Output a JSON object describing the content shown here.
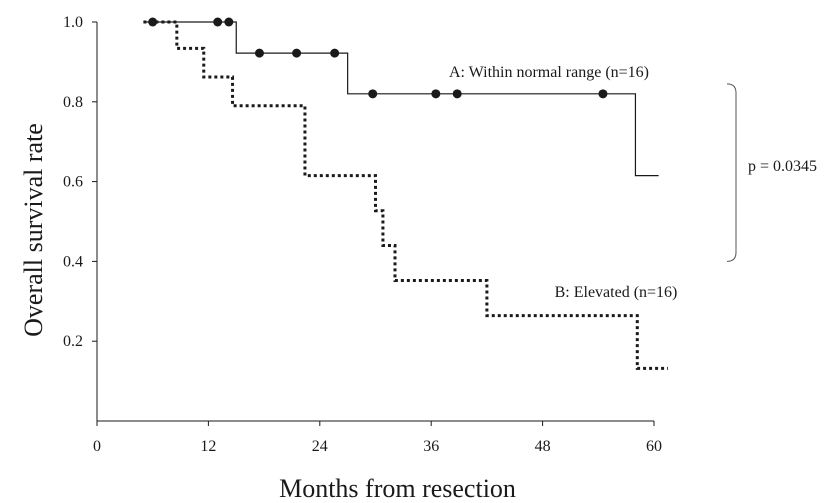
{
  "chart_data": {
    "type": "line",
    "subtype": "kaplan-meier step",
    "title": "",
    "xlabel": "Months from resection",
    "ylabel": "Overall survival rate",
    "xlim": [
      0,
      60
    ],
    "ylim": [
      0,
      1.0
    ],
    "x_ticks": [
      "0",
      "12",
      "24",
      "36",
      "48",
      "60"
    ],
    "y_ticks": [
      "0.2",
      "0.4",
      "0.6",
      "0.8",
      "1.0"
    ],
    "grid": false,
    "legend": "none (direct labels on curves)",
    "series": [
      {
        "name": "A: Within normal range (n=16)",
        "style": "solid",
        "color": "#1a1a1a",
        "steps": [
          {
            "x": 5,
            "y": 1.0
          },
          {
            "x": 15,
            "y": 0.922
          },
          {
            "x": 27,
            "y": 0.82
          },
          {
            "x": 58,
            "y": 0.615
          },
          {
            "x": 60.5,
            "y": 0.615
          }
        ],
        "censored": [
          {
            "x": 6,
            "y": 1.0
          },
          {
            "x": 13,
            "y": 1.0
          },
          {
            "x": 14.2,
            "y": 1.0
          },
          {
            "x": 17.5,
            "y": 0.922
          },
          {
            "x": 21.5,
            "y": 0.922
          },
          {
            "x": 25.6,
            "y": 0.922
          },
          {
            "x": 29.7,
            "y": 0.82
          },
          {
            "x": 36.5,
            "y": 0.82
          },
          {
            "x": 38.8,
            "y": 0.82
          },
          {
            "x": 54.5,
            "y": 0.82
          }
        ]
      },
      {
        "name": "B: Elevated (n=16)",
        "style": "dotted",
        "color": "#1a1a1a",
        "steps": [
          {
            "x": 5,
            "y": 1.0
          },
          {
            "x": 8.6,
            "y": 0.934
          },
          {
            "x": 11.5,
            "y": 0.862
          },
          {
            "x": 14.6,
            "y": 0.79
          },
          {
            "x": 22.4,
            "y": 0.615
          },
          {
            "x": 30,
            "y": 0.527
          },
          {
            "x": 30.8,
            "y": 0.44
          },
          {
            "x": 32.1,
            "y": 0.352
          },
          {
            "x": 42,
            "y": 0.264
          },
          {
            "x": 58.2,
            "y": 0.132
          },
          {
            "x": 61.5,
            "y": 0.132
          }
        ],
        "censored": []
      }
    ],
    "annotations": [
      {
        "text": "A: Within normal range (n=16)"
      },
      {
        "text": "B: Elevated (n=16)"
      },
      {
        "text": "p = 0.0345",
        "note": "bracket spanning curves A and B"
      }
    ]
  }
}
